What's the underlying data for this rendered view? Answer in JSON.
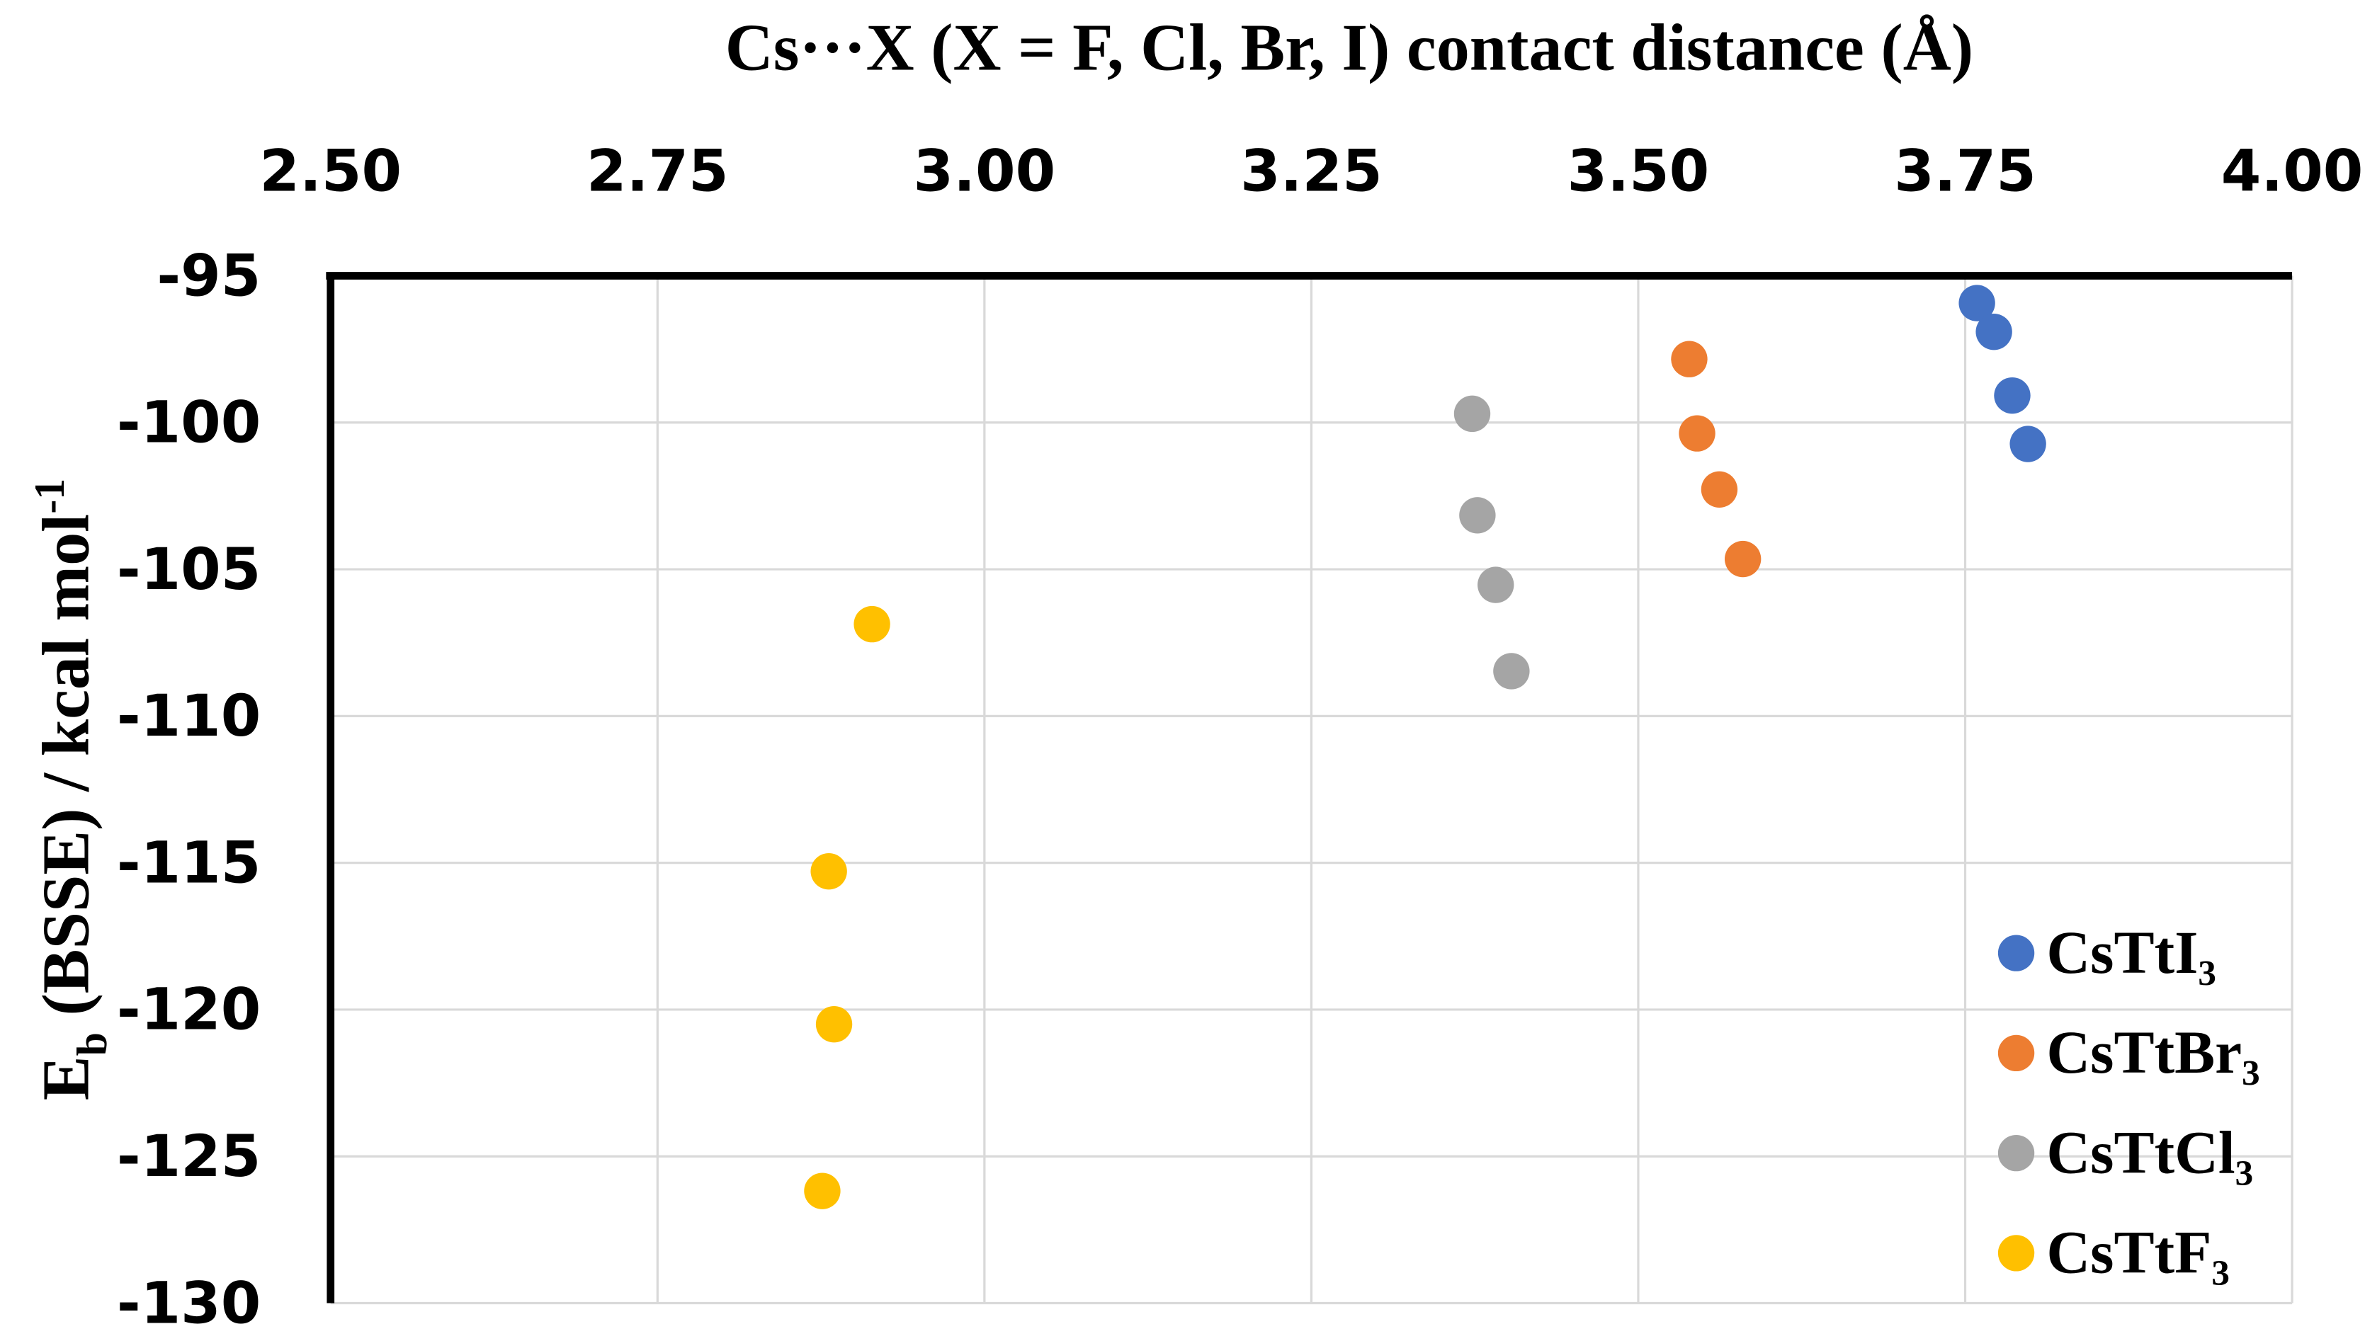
{
  "chart_data": {
    "type": "scatter",
    "xlabel": "Cs···X (X = F, Cl, Br, I) contact distance (Å)",
    "ylabel": [
      "E",
      "b",
      " (BSSE) / kcal mol",
      "-1"
    ],
    "xlim": [
      2.5,
      4.0
    ],
    "xticks": [
      {
        "value": 2.5,
        "label": "2.50"
      },
      {
        "value": 2.75,
        "label": "2.75"
      },
      {
        "value": 3.0,
        "label": "3.00"
      },
      {
        "value": 3.25,
        "label": "3.25"
      },
      {
        "value": 3.5,
        "label": "3.50"
      },
      {
        "value": 3.75,
        "label": "3.75"
      },
      {
        "value": 4.0,
        "label": "4.00"
      }
    ],
    "ylim": [
      -130,
      -95
    ],
    "yticks": [
      -95,
      -100,
      -105,
      -110,
      -115,
      -120,
      -125,
      -130
    ],
    "grid": true,
    "legend": "lower right",
    "series": [
      {
        "name": "CsTtI₃",
        "color": "#4472c4",
        "x": [
          3.759,
          3.772,
          3.786,
          3.798
        ],
        "values": [
          -95.93,
          -96.91,
          -99.08,
          -100.73
        ]
      },
      {
        "name": "CsTtBr₃",
        "color": "#ed7d31",
        "x": [
          3.539,
          3.545,
          3.562,
          3.58
        ],
        "values": [
          -97.84,
          -100.37,
          -102.28,
          -104.65
        ]
      },
      {
        "name": "CsTtCl₃",
        "color": "#a5a5a5",
        "x": [
          3.373,
          3.377,
          3.391,
          3.403
        ],
        "values": [
          -99.7,
          -103.16,
          -105.53,
          -108.47
        ]
      },
      {
        "name": "CsTtF₃",
        "color": "#ffc000",
        "x": [
          2.914,
          2.881,
          2.885,
          2.876
        ],
        "values": [
          -106.87,
          -115.29,
          -120.5,
          -126.18
        ]
      }
    ]
  }
}
